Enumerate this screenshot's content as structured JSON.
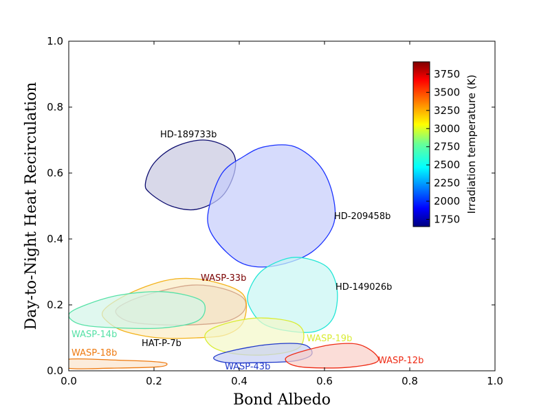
{
  "chart_data": {
    "type": "contour",
    "xlabel": "Bond  Albedo",
    "ylabel": "Day-to-Night  Heat  Recirculation",
    "xlim": [
      0.0,
      1.0
    ],
    "ylim": [
      0.0,
      1.0
    ],
    "xticks": [
      "0.0",
      "0.2",
      "0.4",
      "0.6",
      "0.8",
      "1.0"
    ],
    "yticks": [
      "0.0",
      "0.2",
      "0.4",
      "0.6",
      "0.8",
      "1.0"
    ],
    "colorbar": {
      "label": "Irradiation temperature (K)",
      "range": [
        1650,
        3920
      ],
      "ticks": [
        "1750",
        "2000",
        "2250",
        "2500",
        "2750",
        "3000",
        "3250",
        "3500",
        "3750"
      ]
    },
    "regions": [
      {
        "name": "HD-189733b",
        "label": "HD-189733b",
        "temperature": 1700,
        "stroke": "#0b0b6e",
        "fill": "#c8c8e0",
        "points": [
          [
            0.18,
            0.57
          ],
          [
            0.2,
            0.63
          ],
          [
            0.25,
            0.68
          ],
          [
            0.32,
            0.7
          ],
          [
            0.38,
            0.67
          ],
          [
            0.39,
            0.61
          ],
          [
            0.36,
            0.53
          ],
          [
            0.3,
            0.49
          ],
          [
            0.24,
            0.5
          ],
          [
            0.19,
            0.54
          ]
        ]
      },
      {
        "name": "HD-209458b",
        "label": "HD-209458b",
        "temperature": 1900,
        "stroke": "#1a32ff",
        "fill": "#c4ccfb",
        "points": [
          [
            0.33,
            0.5
          ],
          [
            0.36,
            0.6
          ],
          [
            0.41,
            0.65
          ],
          [
            0.46,
            0.68
          ],
          [
            0.53,
            0.68
          ],
          [
            0.59,
            0.62
          ],
          [
            0.62,
            0.53
          ],
          [
            0.62,
            0.44
          ],
          [
            0.57,
            0.36
          ],
          [
            0.49,
            0.32
          ],
          [
            0.42,
            0.32
          ],
          [
            0.37,
            0.36
          ],
          [
            0.33,
            0.43
          ]
        ]
      },
      {
        "name": "HD-149026b",
        "label": "HD-149026b",
        "temperature": 2450,
        "stroke": "#22e6d6",
        "fill": "#c8f7f3",
        "points": [
          [
            0.42,
            0.23
          ],
          [
            0.45,
            0.3
          ],
          [
            0.51,
            0.34
          ],
          [
            0.56,
            0.34
          ],
          [
            0.61,
            0.31
          ],
          [
            0.63,
            0.24
          ],
          [
            0.62,
            0.16
          ],
          [
            0.58,
            0.12
          ],
          [
            0.52,
            0.12
          ],
          [
            0.46,
            0.14
          ],
          [
            0.43,
            0.18
          ]
        ]
      },
      {
        "name": "WASP-33b",
        "label": "WASP-33b",
        "temperature": 3800,
        "stroke": "#7a0000",
        "fill": "#ddc4c4",
        "points": [
          [
            0.11,
            0.18
          ],
          [
            0.14,
            0.21
          ],
          [
            0.21,
            0.24
          ],
          [
            0.29,
            0.26
          ],
          [
            0.36,
            0.25
          ],
          [
            0.41,
            0.22
          ],
          [
            0.41,
            0.18
          ],
          [
            0.37,
            0.15
          ],
          [
            0.3,
            0.14
          ],
          [
            0.21,
            0.14
          ],
          [
            0.14,
            0.15
          ]
        ]
      },
      {
        "name": "HAT-P-7b",
        "label": "HAT-P-7b",
        "temperature": 3250,
        "stroke": "#f3b21a",
        "fill": "#fbedc4",
        "points": [
          [
            0.08,
            0.18
          ],
          [
            0.12,
            0.22
          ],
          [
            0.19,
            0.26
          ],
          [
            0.26,
            0.28
          ],
          [
            0.34,
            0.27
          ],
          [
            0.41,
            0.23
          ],
          [
            0.41,
            0.15
          ],
          [
            0.37,
            0.11
          ],
          [
            0.3,
            0.1
          ],
          [
            0.21,
            0.1
          ],
          [
            0.13,
            0.12
          ],
          [
            0.09,
            0.15
          ]
        ]
      },
      {
        "name": "WASP-14b",
        "label": "WASP-14b",
        "temperature": 2550,
        "stroke": "#55e1a6",
        "fill": "#d3f5e8",
        "points": [
          [
            0.0,
            0.17
          ],
          [
            0.04,
            0.2
          ],
          [
            0.12,
            0.23
          ],
          [
            0.22,
            0.24
          ],
          [
            0.3,
            0.22
          ],
          [
            0.32,
            0.19
          ],
          [
            0.3,
            0.15
          ],
          [
            0.22,
            0.13
          ],
          [
            0.12,
            0.13
          ],
          [
            0.03,
            0.14
          ]
        ]
      },
      {
        "name": "WASP-19b",
        "label": "WASP-19b",
        "temperature": 2900,
        "stroke": "#d9ec33",
        "fill": "#f4f8c8",
        "points": [
          [
            0.32,
            0.11
          ],
          [
            0.36,
            0.14
          ],
          [
            0.44,
            0.16
          ],
          [
            0.52,
            0.15
          ],
          [
            0.55,
            0.12
          ],
          [
            0.54,
            0.07
          ],
          [
            0.48,
            0.05
          ],
          [
            0.4,
            0.05
          ],
          [
            0.34,
            0.07
          ]
        ]
      },
      {
        "name": "WASP-43b",
        "label": "WASP-43b",
        "temperature": 2050,
        "stroke": "#1e37c9",
        "fill": "#c8d0f4",
        "points": [
          [
            0.34,
            0.04
          ],
          [
            0.38,
            0.06
          ],
          [
            0.47,
            0.08
          ],
          [
            0.55,
            0.08
          ],
          [
            0.57,
            0.05
          ],
          [
            0.53,
            0.03
          ],
          [
            0.45,
            0.025
          ],
          [
            0.37,
            0.025
          ]
        ]
      },
      {
        "name": "WASP-12b",
        "label": "WASP-12b",
        "temperature": 3600,
        "stroke": "#ee2a14",
        "fill": "#f9cfc8",
        "points": [
          [
            0.51,
            0.04
          ],
          [
            0.55,
            0.06
          ],
          [
            0.62,
            0.08
          ],
          [
            0.68,
            0.08
          ],
          [
            0.72,
            0.05
          ],
          [
            0.72,
            0.025
          ],
          [
            0.65,
            0.01
          ],
          [
            0.56,
            0.01
          ],
          [
            0.52,
            0.02
          ]
        ]
      },
      {
        "name": "WASP-18b",
        "label": "WASP-18b",
        "temperature": 3300,
        "stroke": "#ee7a10",
        "fill": "#fbe4cc",
        "points": [
          [
            0.0,
            0.035
          ],
          [
            0.12,
            0.032
          ],
          [
            0.2,
            0.028
          ],
          [
            0.23,
            0.022
          ],
          [
            0.21,
            0.012
          ],
          [
            0.1,
            0.008
          ],
          [
            0.0,
            0.008
          ]
        ]
      }
    ]
  }
}
